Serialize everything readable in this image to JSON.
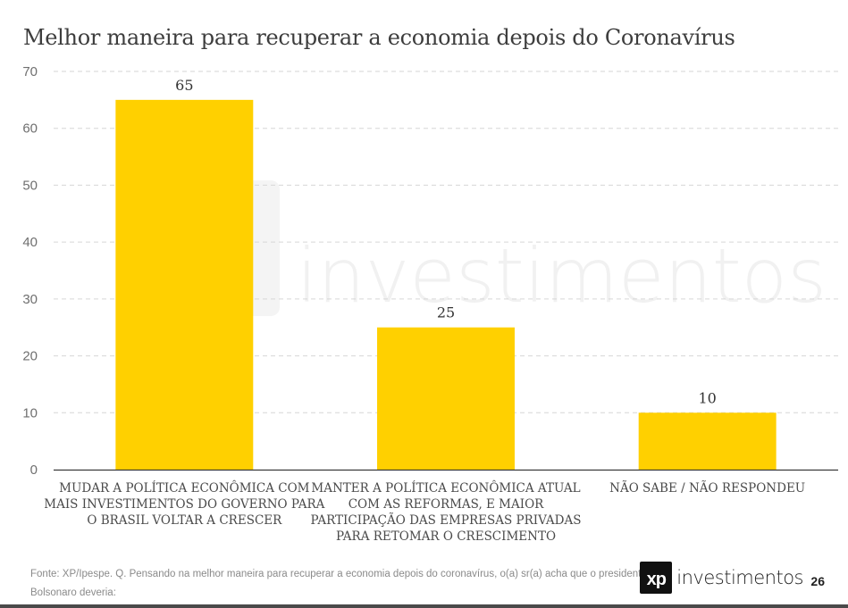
{
  "chart_data": {
    "type": "bar",
    "title": "Melhor maneira para recuperar a economia depois do Coronavírus",
    "categories": [
      [
        "MUDAR A POLÍTICA ECONÔMICA COM",
        "MAIS INVESTIMENTOS DO GOVERNO PARA",
        "O BRASIL VOLTAR A CRESCER"
      ],
      [
        "MANTER A POLÍTICA ECONÔMICA ATUAL",
        "COM AS REFORMAS,  E MAIOR",
        "PARTICIPAÇÃO DAS EMPRESAS PRIVADAS",
        "PARA RETOMAR O CRESCIMENTO"
      ],
      [
        "NÃO SABE / NÃO RESPONDEU"
      ]
    ],
    "values": [
      65,
      25,
      10
    ],
    "ylim": [
      0,
      70
    ],
    "yticks": [
      0,
      10,
      20,
      30,
      40,
      50,
      60,
      70
    ],
    "xlabel": "",
    "ylabel": "",
    "grid": true,
    "bar_color": "#FFD000",
    "grid_color": "#d6d6d6"
  },
  "source_text": "Fonte: XP/Ipespe. Q. Pensando na melhor maneira para recuperar a economia depois do coronavírus, o(a) sr(a) acha que o presidente Bolsonaro deveria:",
  "logo": {
    "mark": "xp",
    "word": "investimentos"
  },
  "watermark": "investimentos",
  "page_number": "26"
}
